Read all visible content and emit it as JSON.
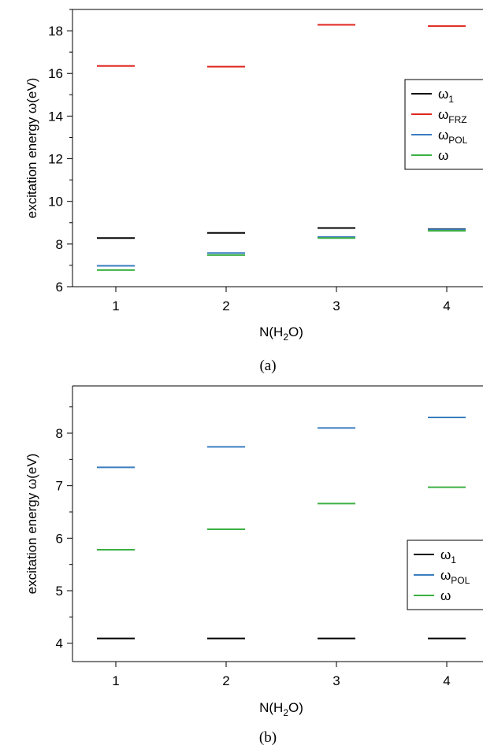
{
  "chart_data": [
    {
      "type": "scatter",
      "marker": "horizontal-dash",
      "panel_label": "(a)",
      "xlabel": {
        "main": "N(H",
        "sub": "2",
        "tail": "O)"
      },
      "ylabel": "excitation energy ω(eV)",
      "categories": [
        "1",
        "2",
        "3",
        "4"
      ],
      "ylim": [
        6,
        19
      ],
      "yticks": [
        6,
        8,
        10,
        12,
        14,
        16,
        18
      ],
      "legend_position": "right",
      "series": [
        {
          "name": "ω",
          "sub": "1",
          "color": "#000000",
          "values": [
            8.28,
            8.52,
            8.75,
            8.7
          ]
        },
        {
          "name": "ω",
          "sub": "FRZ",
          "color": "#e0261e",
          "values": [
            16.35,
            16.32,
            18.28,
            18.22
          ]
        },
        {
          "name": "ω",
          "sub": "POL",
          "color": "#3a7dc0",
          "values": [
            6.98,
            7.58,
            8.33,
            8.68
          ]
        },
        {
          "name": "ω",
          "sub": "",
          "color": "#3cb043",
          "values": [
            6.78,
            7.48,
            8.28,
            8.62
          ]
        }
      ]
    },
    {
      "type": "scatter",
      "marker": "horizontal-dash",
      "panel_label": "(b)",
      "xlabel": {
        "main": "N(H",
        "sub": "2",
        "tail": "O)"
      },
      "ylabel": "excitation energy ω(eV)",
      "categories": [
        "1",
        "2",
        "3",
        "4"
      ],
      "ylim": [
        3.65,
        8.9
      ],
      "yticks": [
        4,
        5,
        6,
        7,
        8
      ],
      "legend_position": "right",
      "series": [
        {
          "name": "ω",
          "sub": "1",
          "color": "#000000",
          "values": [
            4.09,
            4.09,
            4.09,
            4.09
          ]
        },
        {
          "name": "ω",
          "sub": "POL",
          "color": "#3a7dc0",
          "values": [
            7.35,
            7.74,
            8.1,
            8.3
          ]
        },
        {
          "name": "ω",
          "sub": "",
          "color": "#3cb043",
          "values": [
            5.78,
            6.17,
            6.66,
            6.97
          ]
        }
      ]
    }
  ]
}
